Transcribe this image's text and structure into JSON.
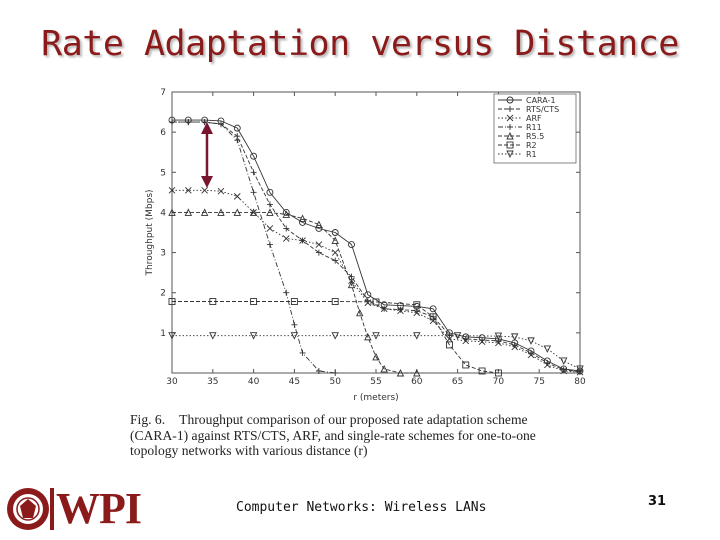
{
  "slide": {
    "title": "Rate Adaptation versus Distance",
    "footer": "Computer Networks: Wireless LANs",
    "page_number": "31",
    "logo_text": "WPI",
    "seal_text": "WORCESTER POLYTECHNIC INSTITUTE 1865"
  },
  "caption": {
    "fig_label": "Fig. 6.",
    "lines": [
      "Throughput comparison of our proposed rate adaptation scheme",
      "(CARA-1) against RTS/CTS, ARF, and single-rate schemes for one-to-one",
      "topology networks with various distance (r)"
    ]
  },
  "colors": {
    "title": "#8b1a1a",
    "arrow": "#7a1530",
    "lines": "#333333"
  },
  "chart_data": {
    "type": "line",
    "xlabel": "r (meters)",
    "ylabel": "Throughput (Mbps)",
    "xlim": [
      30,
      80
    ],
    "ylim": [
      0,
      7
    ],
    "xticks": [
      30,
      35,
      40,
      45,
      50,
      55,
      60,
      65,
      70,
      75,
      80
    ],
    "yticks": [
      0,
      1,
      2,
      3,
      4,
      5,
      6,
      7
    ],
    "legend_position": "top-right",
    "series": [
      {
        "name": "CARA-1",
        "marker": "circle",
        "dash": "solid",
        "x": [
          30,
          32,
          34,
          36,
          38,
          40,
          42,
          44,
          46,
          48,
          50,
          52,
          54,
          56,
          58,
          60,
          62,
          64,
          66,
          68,
          70,
          72,
          74,
          76,
          78,
          80
        ],
        "y": [
          6.3,
          6.3,
          6.3,
          6.28,
          6.1,
          5.4,
          4.5,
          4.0,
          3.75,
          3.6,
          3.5,
          3.2,
          1.95,
          1.7,
          1.68,
          1.66,
          1.6,
          1.0,
          0.9,
          0.88,
          0.85,
          0.75,
          0.55,
          0.3,
          0.1,
          0.05
        ]
      },
      {
        "name": "RTS/CTS",
        "marker": "plus",
        "dash": "dashed",
        "x": [
          30,
          32,
          34,
          36,
          38,
          40,
          42,
          44,
          46,
          48,
          50,
          52,
          54,
          56,
          58,
          60,
          62,
          64,
          66,
          68,
          70,
          72,
          74,
          76,
          78,
          80
        ],
        "y": [
          6.25,
          6.25,
          6.25,
          6.2,
          5.9,
          5.0,
          4.2,
          3.6,
          3.3,
          3.0,
          2.8,
          2.4,
          1.8,
          1.6,
          1.58,
          1.55,
          1.4,
          0.95,
          0.85,
          0.82,
          0.8,
          0.7,
          0.5,
          0.25,
          0.08,
          0.03
        ]
      },
      {
        "name": "ARF",
        "marker": "x",
        "dash": "dotted",
        "x": [
          30,
          32,
          34,
          36,
          38,
          40,
          42,
          44,
          46,
          48,
          50,
          52,
          54,
          56,
          58,
          60,
          62,
          64,
          66,
          68,
          70,
          72,
          74,
          76,
          78,
          80
        ],
        "y": [
          4.55,
          4.55,
          4.55,
          4.53,
          4.4,
          4.0,
          3.6,
          3.35,
          3.3,
          3.2,
          3.0,
          2.3,
          1.75,
          1.6,
          1.55,
          1.5,
          1.3,
          0.85,
          0.8,
          0.78,
          0.75,
          0.65,
          0.45,
          0.2,
          0.05,
          0.02
        ]
      },
      {
        "name": "R11",
        "marker": "plus",
        "dash": "dashdot",
        "x": [
          30,
          32,
          34,
          36,
          38,
          40,
          42,
          44,
          45,
          46,
          48,
          50
        ],
        "y": [
          6.25,
          6.25,
          6.25,
          6.2,
          5.8,
          4.5,
          3.2,
          2.0,
          1.2,
          0.5,
          0.05,
          0
        ]
      },
      {
        "name": "R5.5",
        "marker": "triangle",
        "dash": "dashed",
        "x": [
          30,
          32,
          34,
          36,
          38,
          40,
          42,
          44,
          46,
          48,
          50,
          52,
          53,
          54,
          55,
          56,
          58,
          60
        ],
        "y": [
          4.0,
          4.0,
          4.0,
          4.0,
          4.0,
          4.0,
          4.0,
          3.95,
          3.85,
          3.7,
          3.3,
          2.2,
          1.5,
          0.9,
          0.4,
          0.1,
          0,
          0
        ]
      },
      {
        "name": "R2",
        "marker": "square",
        "dash": "dashed",
        "x": [
          30,
          35,
          40,
          45,
          50,
          55,
          60,
          62,
          64,
          66,
          68,
          70
        ],
        "y": [
          1.78,
          1.78,
          1.78,
          1.78,
          1.78,
          1.77,
          1.7,
          1.4,
          0.7,
          0.2,
          0.05,
          0
        ]
      },
      {
        "name": "R1",
        "marker": "triangle-down",
        "dash": "dotted",
        "x": [
          30,
          35,
          40,
          45,
          50,
          55,
          60,
          65,
          70,
          72,
          74,
          76,
          78,
          80
        ],
        "y": [
          0.93,
          0.93,
          0.93,
          0.93,
          0.93,
          0.93,
          0.93,
          0.93,
          0.92,
          0.9,
          0.8,
          0.6,
          0.3,
          0.1
        ]
      }
    ]
  }
}
